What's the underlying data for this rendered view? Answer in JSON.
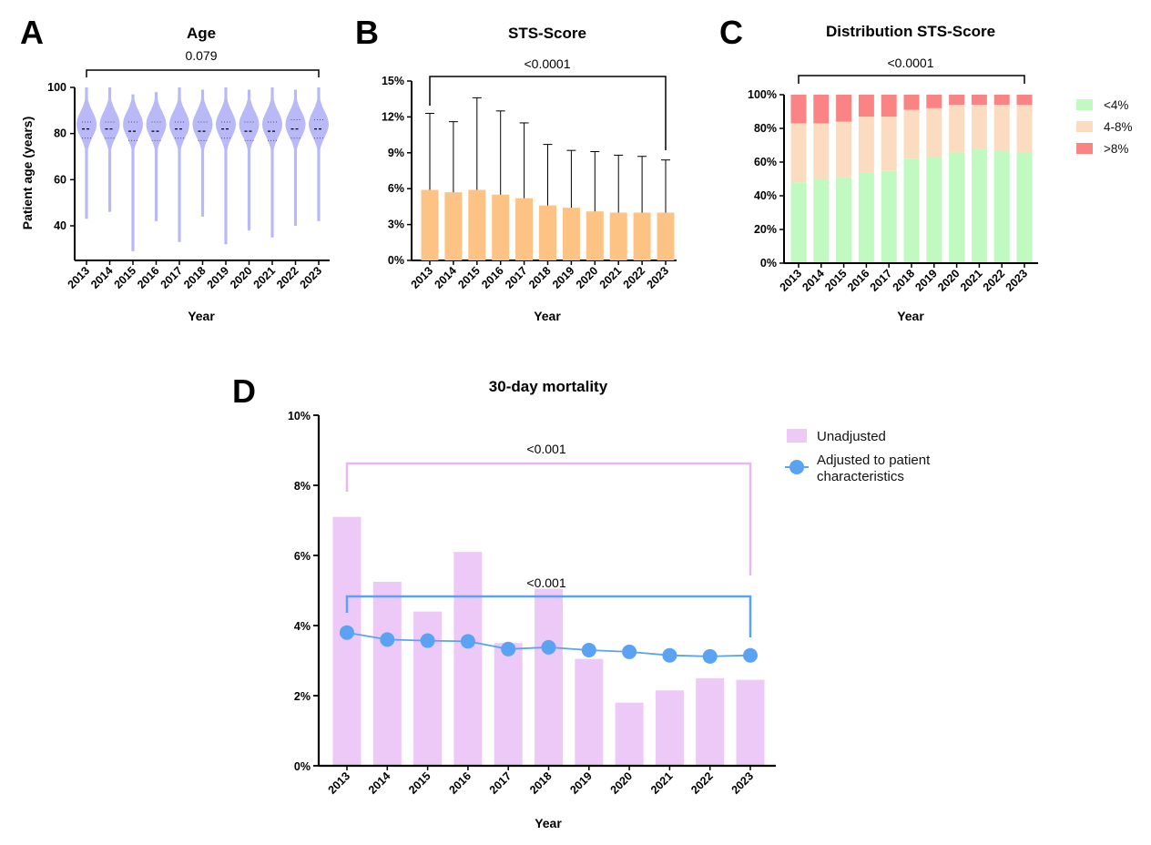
{
  "colors": {
    "violin": "#b9b9f7",
    "sts_bar": "#fcc385",
    "low": "#c1fac1",
    "mid": "#fcdcc0",
    "high": "#fa8383",
    "unadjusted": "#edc9f7",
    "unadjusted_bracket": "#e6b8f2",
    "adjusted": "#5aa2f2"
  },
  "chart_data": [
    {
      "id": "A",
      "type": "violin",
      "panel_letter": "A",
      "title": "Age",
      "xlabel": "Year",
      "ylabel": "Patient age (years)",
      "categories": [
        "2013",
        "2014",
        "2015",
        "2016",
        "2017",
        "2018",
        "2019",
        "2020",
        "2021",
        "2022",
        "2023"
      ],
      "ylim": [
        25,
        100
      ],
      "yticks": [
        40,
        60,
        80,
        100
      ],
      "medians": [
        82,
        82,
        81,
        81,
        82,
        81,
        82,
        81,
        81,
        82,
        82
      ],
      "q1": [
        78,
        78,
        77,
        77,
        78,
        77,
        78,
        77,
        77,
        78,
        78
      ],
      "q3": [
        85,
        85,
        85,
        85,
        85,
        85,
        85,
        85,
        85,
        86,
        86
      ],
      "min": [
        43,
        46,
        29,
        42,
        33,
        44,
        32,
        38,
        35,
        40,
        42
      ],
      "max": [
        100,
        100,
        97,
        98,
        100,
        99,
        100,
        99,
        100,
        99,
        100
      ],
      "pvalue": "0.079"
    },
    {
      "id": "B",
      "type": "bar",
      "panel_letter": "B",
      "title": "STS-Score",
      "xlabel": "Year",
      "ylabel": "",
      "categories": [
        "2013",
        "2014",
        "2015",
        "2016",
        "2017",
        "2018",
        "2019",
        "2020",
        "2021",
        "2022",
        "2023"
      ],
      "values": [
        5.9,
        5.7,
        5.9,
        5.5,
        5.2,
        4.6,
        4.4,
        4.1,
        4.0,
        4.0,
        4.0
      ],
      "error_upper": [
        12.3,
        11.6,
        13.6,
        12.5,
        11.5,
        9.7,
        9.2,
        9.1,
        8.8,
        8.7,
        8.4
      ],
      "ylim": [
        0,
        15
      ],
      "ytick_labels": [
        "0%",
        "3%",
        "6%",
        "9%",
        "12%",
        "15%"
      ],
      "yticks": [
        0,
        3,
        6,
        9,
        12,
        15
      ],
      "pvalue": "<0.0001"
    },
    {
      "id": "C",
      "type": "stacked-bar",
      "panel_letter": "C",
      "title": "Distribution STS-Score",
      "xlabel": "Year",
      "ylabel": "",
      "categories": [
        "2013",
        "2014",
        "2015",
        "2016",
        "2017",
        "2018",
        "2019",
        "2020",
        "2021",
        "2022",
        "2023"
      ],
      "series": [
        {
          "name": "<4%",
          "values": [
            48,
            50,
            51,
            54,
            55,
            62,
            63,
            66,
            68,
            67,
            66
          ]
        },
        {
          "name": "4-8%",
          "values": [
            35,
            33,
            33,
            33,
            32,
            29,
            29,
            28,
            26,
            27,
            28
          ]
        },
        {
          "name": ">8%",
          "values": [
            17,
            17,
            16,
            13,
            13,
            9,
            8,
            6,
            6,
            6,
            6
          ]
        }
      ],
      "ylim": [
        0,
        100
      ],
      "yticks": [
        0,
        20,
        40,
        60,
        80,
        100
      ],
      "ytick_labels": [
        "0%",
        "20%",
        "40%",
        "60%",
        "80%",
        "100%"
      ],
      "legend": [
        "<4%",
        "4-8%",
        ">8%"
      ],
      "pvalue": "<0.0001"
    },
    {
      "id": "D",
      "type": "bar+line",
      "panel_letter": "D",
      "title": "30-day mortality",
      "xlabel": "Year",
      "ylabel": "",
      "categories": [
        "2013",
        "2014",
        "2015",
        "2016",
        "2017",
        "2018",
        "2019",
        "2020",
        "2021",
        "2022",
        "2023"
      ],
      "series": [
        {
          "name": "Unadjusted",
          "type": "bar",
          "values": [
            7.1,
            5.25,
            4.4,
            6.1,
            3.5,
            5.05,
            3.05,
            1.8,
            2.15,
            2.5,
            2.45
          ]
        },
        {
          "name": "Adjusted to patient characteristics",
          "type": "line",
          "values": [
            3.8,
            3.6,
            3.57,
            3.55,
            3.33,
            3.38,
            3.3,
            3.25,
            3.15,
            3.12,
            3.15
          ]
        }
      ],
      "ylim": [
        0,
        10
      ],
      "yticks": [
        0,
        2,
        4,
        6,
        8,
        10
      ],
      "ytick_labels": [
        "0%",
        "2%",
        "4%",
        "6%",
        "8%",
        "10%"
      ],
      "legend_line1": "Unadjusted",
      "legend_line2a": "Adjusted to patient",
      "legend_line2b": "characteristics",
      "pvalue_unadjusted": "<0.001",
      "pvalue_adjusted": "<0.001"
    }
  ]
}
